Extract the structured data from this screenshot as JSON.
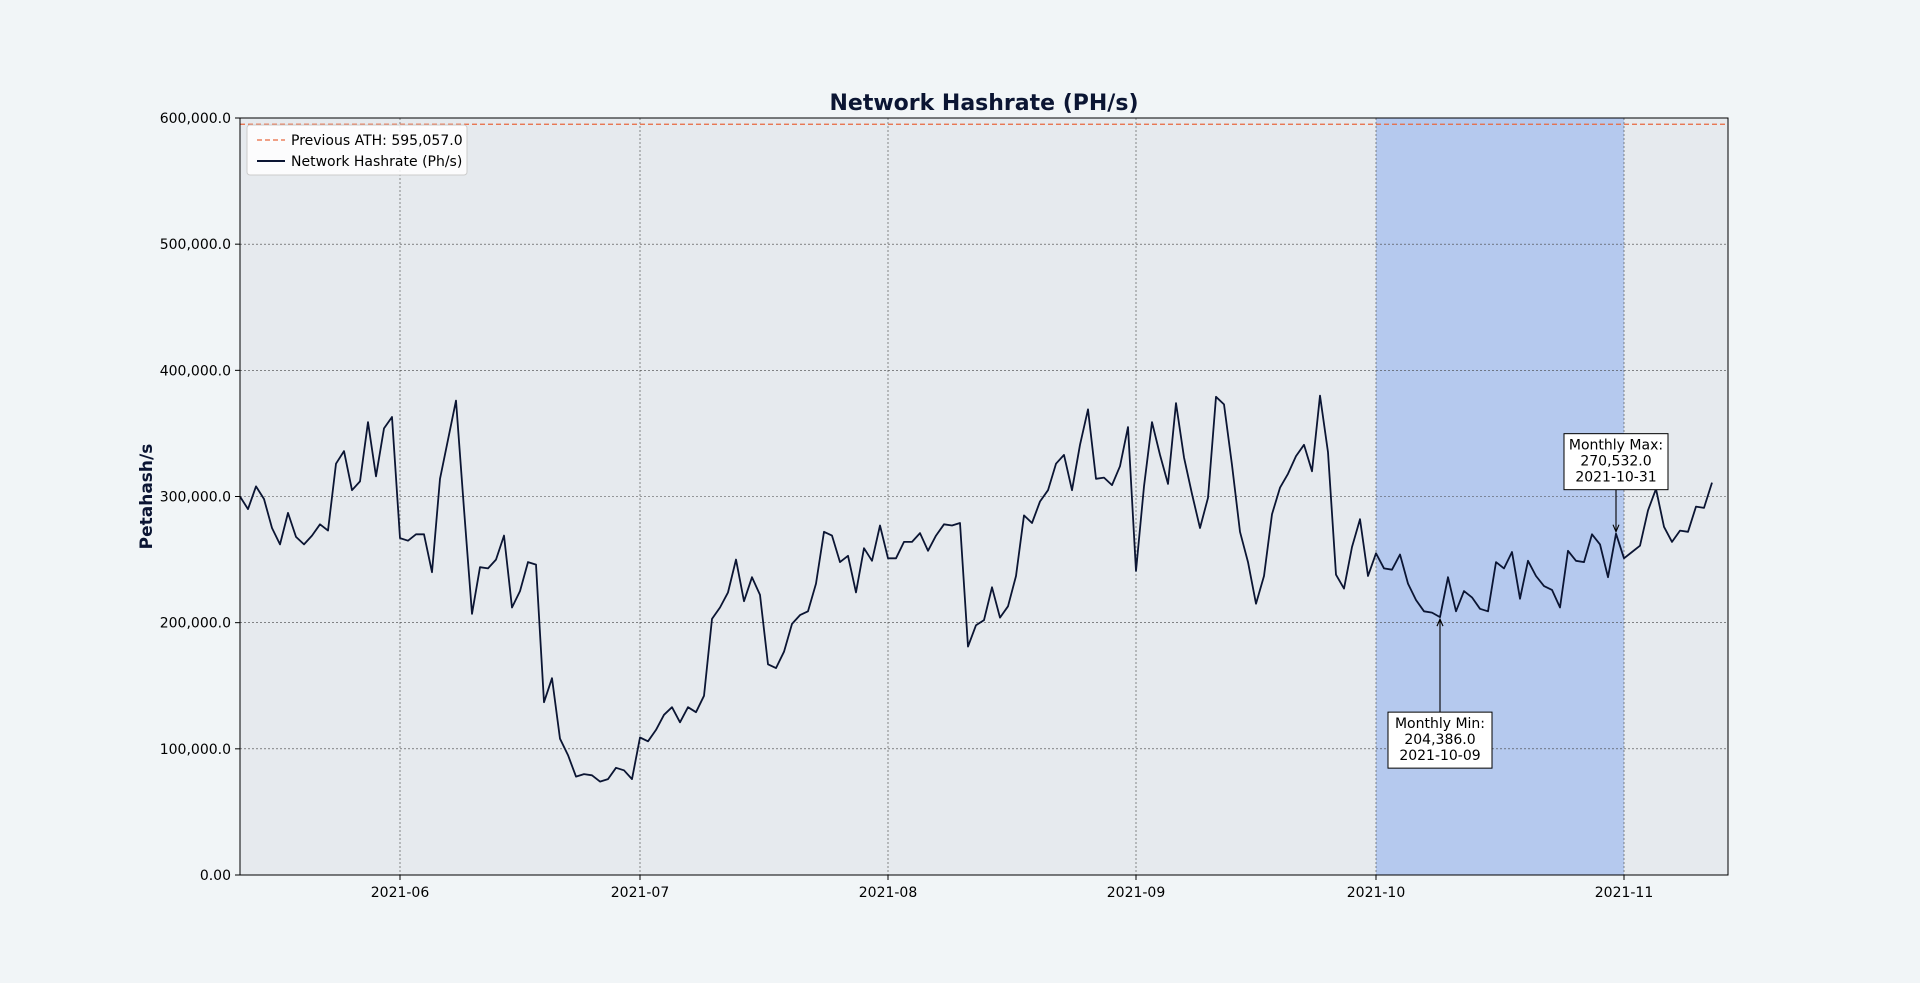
{
  "chart_data": {
    "type": "line",
    "title": "Network Hashrate (PH/s)",
    "xlabel": "",
    "ylabel": "Petahash/s",
    "ylim": [
      0,
      600000
    ],
    "xlim": [
      "2021-05-12",
      "2021-11-14"
    ],
    "y_ticks": [
      0,
      100000,
      200000,
      300000,
      400000,
      500000,
      600000
    ],
    "y_tick_labels": [
      "0.00",
      "100,000.0",
      "200,000.0",
      "300,000.0",
      "400,000.0",
      "500,000.0",
      "600,000.0"
    ],
    "x_ticks": [
      "2021-06-01",
      "2021-07-01",
      "2021-08-01",
      "2021-09-01",
      "2021-10-01",
      "2021-11-01"
    ],
    "x_tick_labels": [
      "2021-06",
      "2021-07",
      "2021-08",
      "2021-09",
      "2021-10",
      "2021-11"
    ],
    "grid": true,
    "legend_position": "top-left",
    "highlight_span": {
      "start": "2021-10-01",
      "end": "2021-11-01",
      "color": "#b5c9ee"
    },
    "reference_line": {
      "name": "Previous ATH: 595,057.0",
      "value": 595057,
      "color": "#e8683f",
      "style": "dashed"
    },
    "series": [
      {
        "name": "Network Hashrate (Ph/s)",
        "color": "#0b1533",
        "start_date": "2021-05-12",
        "values": [
          300000,
          290000,
          308000,
          298000,
          275000,
          262000,
          287000,
          268000,
          262000,
          269000,
          278000,
          273000,
          326000,
          336000,
          305000,
          312000,
          359000,
          316000,
          354000,
          363000,
          267000,
          265000,
          270000,
          270000,
          240000,
          314000,
          345000,
          376000,
          290000,
          207000,
          244000,
          243000,
          250000,
          269000,
          212000,
          225000,
          248000,
          246000,
          137000,
          156000,
          108000,
          95000,
          78000,
          80000,
          79000,
          74000,
          76000,
          85000,
          83000,
          76000,
          109000,
          106000,
          115000,
          127000,
          133000,
          121000,
          133000,
          129000,
          142000,
          203000,
          212000,
          224000,
          250000,
          217000,
          236000,
          222000,
          167000,
          164000,
          177000,
          199000,
          206000,
          209000,
          231000,
          272000,
          269000,
          248000,
          253000,
          224000,
          259000,
          249000,
          277000,
          251000,
          251000,
          264000,
          264000,
          271000,
          257000,
          269000,
          278000,
          277000,
          279000,
          181000,
          198000,
          202000,
          228000,
          204000,
          213000,
          237000,
          285000,
          279000,
          296000,
          305000,
          326000,
          333000,
          305000,
          341000,
          369000,
          314000,
          315000,
          309000,
          324000,
          355000,
          241000,
          308000,
          359000,
          333000,
          310000,
          374000,
          331000,
          302000,
          275000,
          299000,
          379000,
          373000,
          325000,
          272000,
          248000,
          215000,
          237000,
          286000,
          307000,
          318000,
          332000,
          341000,
          320000,
          380000,
          335000,
          238000,
          227000,
          260000,
          282000,
          237000,
          255000,
          243000,
          242000,
          254000,
          231000,
          218000,
          209000,
          208000,
          204386,
          236000,
          209000,
          225000,
          220000,
          211000,
          209000,
          248000,
          243000,
          256000,
          219000,
          249000,
          237000,
          229000,
          226000,
          212000,
          257000,
          249000,
          248000,
          270000,
          262000,
          236000,
          270532,
          251000,
          256000,
          261000,
          289000,
          306000,
          276000,
          264000,
          273000,
          272000,
          292000,
          291000,
          311000
        ]
      }
    ],
    "annotations": [
      {
        "lines": [
          "Monthly Max:",
          "270,532.0",
          "2021-10-31"
        ],
        "point": [
          "2021-10-31",
          270532
        ]
      },
      {
        "lines": [
          "Monthly Min:",
          "204,386.0",
          "2021-10-09"
        ],
        "point": [
          "2021-10-09",
          204386
        ]
      }
    ],
    "colors": {
      "plot_background": "#e6eaee",
      "page_background": "#f1f5f7"
    }
  }
}
